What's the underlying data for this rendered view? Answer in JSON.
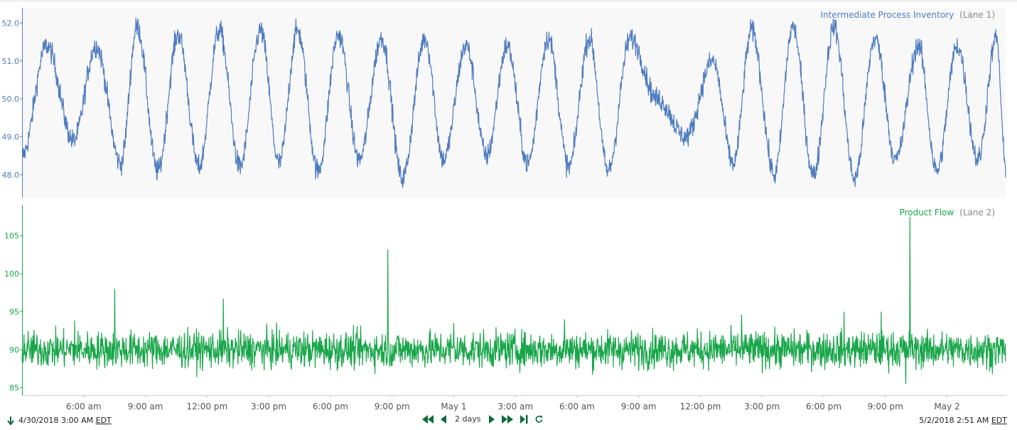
{
  "colors": {
    "lane1": "#4f7cc0",
    "lane2": "#19a64a",
    "nav": "#0d6b3a",
    "panel1_bg": "#f8f8f8",
    "grid": "#e8e8e8"
  },
  "chart_data": {
    "type": "line",
    "x_range": [
      "2018-04-30 03:00",
      "2018-05-02 02:51"
    ],
    "x_tick_labels": [
      "6:00 am",
      "9:00 am",
      "12:00 pm",
      "3:00 pm",
      "6:00 pm",
      "9:00 pm",
      "May 1",
      "3:00 am",
      "6:00 am",
      "9:00 am",
      "12:00 pm",
      "3:00 pm",
      "6:00 pm",
      "9:00 pm",
      "May 2"
    ],
    "x_tick_hours": [
      3,
      6,
      9,
      12,
      15,
      18,
      21,
      24,
      27,
      30,
      33,
      36,
      39,
      42,
      45
    ],
    "lanes": [
      {
        "name": "Intermediate Process Inventory",
        "lane_label": "(Lane 1)",
        "ylim": [
          47.4,
          52.4
        ],
        "y_ticks": [
          48.0,
          49.0,
          50.0,
          51.0,
          52.0
        ],
        "y_tick_labels": [
          "48.0",
          "49.0",
          "50.0",
          "51.0",
          "52.0"
        ],
        "peaks": [
          [
            0.0,
            48.5
          ],
          [
            1.2,
            51.4
          ],
          [
            2.5,
            48.9
          ],
          [
            3.6,
            51.4
          ],
          [
            4.8,
            48.3
          ],
          [
            5.6,
            51.9
          ],
          [
            6.6,
            48.1
          ],
          [
            7.6,
            51.7
          ],
          [
            8.6,
            48.2
          ],
          [
            9.6,
            51.8
          ],
          [
            10.6,
            48.2
          ],
          [
            11.6,
            51.8
          ],
          [
            12.5,
            48.3
          ],
          [
            13.4,
            51.8
          ],
          [
            14.4,
            48.1
          ],
          [
            15.4,
            51.7
          ],
          [
            16.4,
            48.4
          ],
          [
            17.5,
            51.6
          ],
          [
            18.5,
            47.9
          ],
          [
            19.6,
            51.6
          ],
          [
            20.5,
            48.4
          ],
          [
            21.6,
            51.4
          ],
          [
            22.6,
            48.5
          ],
          [
            23.6,
            51.4
          ],
          [
            24.6,
            48.3
          ],
          [
            25.6,
            51.6
          ],
          [
            26.6,
            48.2
          ],
          [
            27.6,
            51.6
          ],
          [
            28.5,
            48.1
          ],
          [
            29.6,
            51.6
          ],
          [
            30.9,
            50.0
          ],
          [
            32.3,
            49.0
          ],
          [
            33.6,
            51.0
          ],
          [
            34.6,
            48.3
          ],
          [
            35.5,
            51.8
          ],
          [
            36.6,
            48.0
          ],
          [
            37.5,
            51.9
          ],
          [
            38.5,
            48.0
          ],
          [
            39.5,
            51.9
          ],
          [
            40.5,
            47.9
          ],
          [
            41.5,
            51.6
          ],
          [
            42.5,
            48.4
          ],
          [
            43.6,
            51.4
          ],
          [
            44.5,
            48.1
          ],
          [
            45.5,
            51.4
          ],
          [
            46.5,
            48.4
          ],
          [
            47.4,
            51.6
          ],
          [
            47.85,
            48.2
          ]
        ],
        "noise_amp": 0.25
      },
      {
        "name": "Product Flow",
        "lane_label": "(Lane 2)",
        "ylim": [
          84.0,
          109.0
        ],
        "y_ticks": [
          85,
          90,
          95,
          100,
          105
        ],
        "y_tick_labels": [
          "85",
          "90",
          "95",
          "100",
          "105"
        ],
        "baseline": 90.0,
        "noise_amp": 1.5,
        "spikes": [
          [
            2.55,
            93.8
          ],
          [
            4.5,
            98.0
          ],
          [
            9.8,
            96.7
          ],
          [
            17.8,
            103.2
          ],
          [
            21.0,
            93.5
          ],
          [
            26.4,
            94.0
          ],
          [
            35.0,
            94.6
          ],
          [
            40.0,
            95.0
          ],
          [
            41.8,
            95.0
          ],
          [
            43.2,
            107.5
          ],
          [
            43.0,
            85.5
          ]
        ]
      }
    ]
  },
  "footer": {
    "start_time": "4/30/2018 3:00 AM",
    "start_tz": "EDT",
    "end_time": "5/2/2018 2:51 AM",
    "end_tz": "EDT",
    "span_label": "2 days"
  }
}
